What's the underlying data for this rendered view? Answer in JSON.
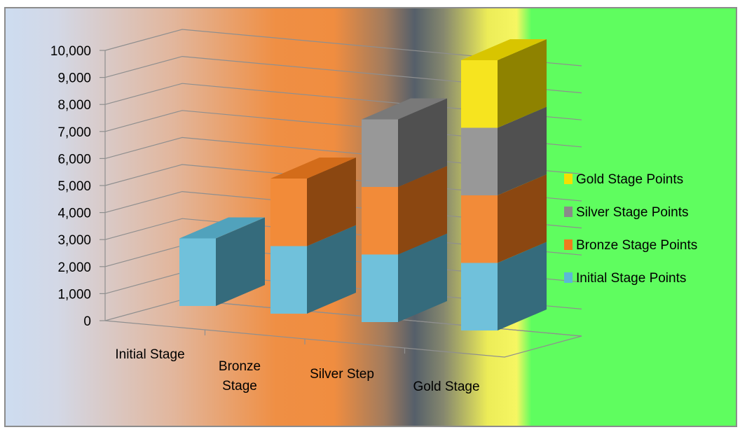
{
  "chart_data": {
    "type": "bar",
    "stacked": true,
    "three_d": true,
    "title": "",
    "xlabel": "",
    "ylabel": "",
    "categories": [
      "Initial Stage",
      "Bronze Stage",
      "Silver Step",
      "Gold Stage"
    ],
    "series": [
      {
        "name": "Initial Stage Points",
        "values": [
          2500,
          2500,
          2500,
          2500
        ],
        "color": "#5cb8d6"
      },
      {
        "name": "Bronze Stage Points",
        "values": [
          0,
          2500,
          2500,
          2500
        ],
        "color": "#f07b1e"
      },
      {
        "name": "Silver Stage Points",
        "values": [
          0,
          0,
          2500,
          2500
        ],
        "color": "#8a8a8a"
      },
      {
        "name": "Gold Stage Points",
        "values": [
          0,
          0,
          0,
          2500
        ],
        "color": "#f5e000"
      }
    ],
    "ylim": [
      0,
      10000
    ],
    "yticks": [
      "0",
      "1,000",
      "2,000",
      "3,000",
      "4,000",
      "5,000",
      "6,000",
      "7,000",
      "8,000",
      "9,000",
      "10,000"
    ],
    "grid": true,
    "legend": "right",
    "legend_order": [
      "Gold Stage Points",
      "Silver Stage Points",
      "Bronze Stage Points",
      "Initial Stage Points"
    ]
  }
}
